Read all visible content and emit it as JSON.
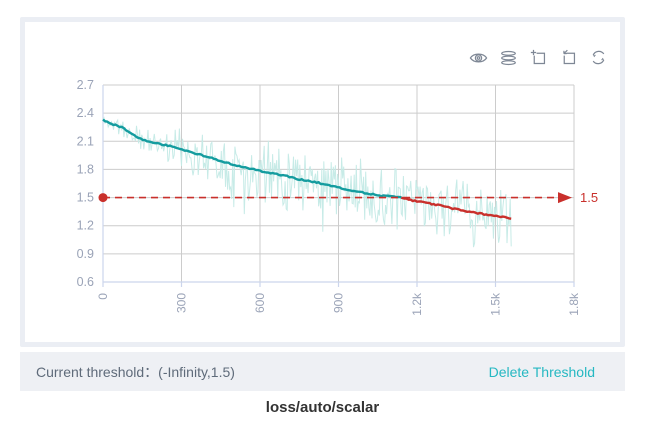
{
  "title": "loss/auto/scalar",
  "card": {
    "toolbar": [
      {
        "name": "toggle-visibility",
        "icon": "eye-icon"
      },
      {
        "name": "runs-stack",
        "icon": "stack-icon"
      },
      {
        "name": "drag-zoom",
        "icon": "zoom-select-icon"
      },
      {
        "name": "reset-zoom",
        "icon": "zoom-reset-icon"
      },
      {
        "name": "refresh",
        "icon": "refresh-icon"
      }
    ]
  },
  "threshold_bar": {
    "label": "Current threshold：",
    "value": "(-Infinity,1.5)",
    "delete_label": "Delete Threshold"
  },
  "colors": {
    "card_border": "#ebeef4",
    "footer_bg": "#eef0f4",
    "footer_text": "#5f6b7a",
    "delete_link": "#25b8c2",
    "icon": "#7e8795",
    "grid": "#cccccc",
    "axis": "#ccd5ec",
    "tick_label": "#9aa3b7",
    "raw_line": "#c4eae6",
    "smoothed_line": "#149c9f",
    "threshold_red": "#c9302c",
    "title_text": "#333333"
  },
  "chart_data": {
    "type": "line",
    "title": "loss/auto/scalar",
    "xlabel": "",
    "ylabel": "",
    "xlim": [
      0,
      1800
    ],
    "ylim": [
      0.6,
      2.7
    ],
    "x_tick_values": [
      0,
      300,
      600,
      900,
      1200,
      1500,
      1800
    ],
    "x_tick_labels": [
      "0",
      "300",
      "600",
      "900",
      "1.2k",
      "1.5k",
      "1.8k"
    ],
    "y_tick_values": [
      0.6,
      0.9,
      1.2,
      1.5,
      1.8,
      2.1,
      2.4,
      2.7
    ],
    "y_tick_labels": [
      "0.6",
      "0.9",
      "1.2",
      "1.5",
      "1.8",
      "2.1",
      "2.4",
      "2.7"
    ],
    "x_label_rotation": 90,
    "grid": true,
    "legend": "none",
    "x_data_max": 1560,
    "threshold": {
      "value": 1.5,
      "label": "1.5",
      "range_text": "(-Infinity,1.5)",
      "style": "dashed",
      "marker_left": "dot-on-axis",
      "marker_right": "arrow-with-label",
      "color": "#c9302c"
    },
    "series": [
      {
        "name": "raw",
        "color": "#c4eae6",
        "description": "unsmoothed scalar values; noisy band around the smoothed line",
        "noise_amplitude_range": [
          0.05,
          0.33
        ],
        "observed_min": 0.78,
        "observed_max": 2.55,
        "seed": 11
      },
      {
        "name": "smoothed",
        "color_above_threshold": "#149c9f",
        "color_below_threshold": "#c9302c",
        "keypoints": [
          [
            0,
            2.33
          ],
          [
            20,
            2.3
          ],
          [
            40,
            2.28
          ],
          [
            60,
            2.26
          ],
          [
            80,
            2.24
          ],
          [
            100,
            2.2
          ],
          [
            120,
            2.16
          ],
          [
            140,
            2.13
          ],
          [
            160,
            2.11
          ],
          [
            180,
            2.09
          ],
          [
            200,
            2.08
          ],
          [
            240,
            2.06
          ],
          [
            280,
            2.03
          ],
          [
            300,
            2.01
          ],
          [
            340,
            1.98
          ],
          [
            380,
            1.95
          ],
          [
            420,
            1.92
          ],
          [
            460,
            1.88
          ],
          [
            500,
            1.85
          ],
          [
            540,
            1.82
          ],
          [
            580,
            1.8
          ],
          [
            620,
            1.77
          ],
          [
            660,
            1.75
          ],
          [
            700,
            1.73
          ],
          [
            740,
            1.7
          ],
          [
            780,
            1.68
          ],
          [
            820,
            1.66
          ],
          [
            860,
            1.63
          ],
          [
            900,
            1.61
          ],
          [
            940,
            1.58
          ],
          [
            980,
            1.56
          ],
          [
            1020,
            1.54
          ],
          [
            1060,
            1.52
          ],
          [
            1100,
            1.51
          ],
          [
            1140,
            1.5
          ],
          [
            1180,
            1.47
          ],
          [
            1220,
            1.45
          ],
          [
            1260,
            1.43
          ],
          [
            1300,
            1.41
          ],
          [
            1340,
            1.38
          ],
          [
            1380,
            1.36
          ],
          [
            1420,
            1.34
          ],
          [
            1460,
            1.32
          ],
          [
            1500,
            1.31
          ],
          [
            1530,
            1.29
          ],
          [
            1560,
            1.28
          ]
        ]
      }
    ]
  }
}
